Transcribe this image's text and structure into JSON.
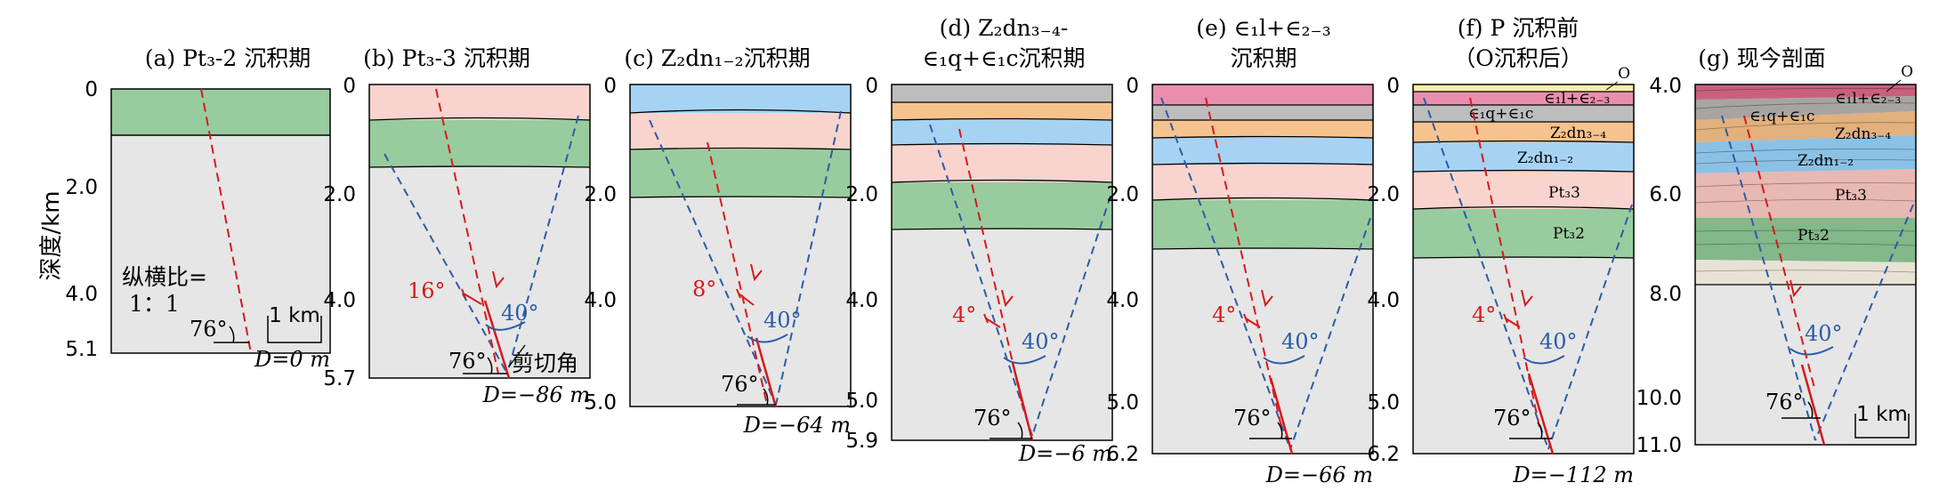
{
  "y_axis_label": "深度/km",
  "aspect_note": [
    "纵横比=",
    "1：1"
  ],
  "scale_label": "1 km",
  "shear_angle_label": "剪切角",
  "colors": {
    "grey": "#e6e6e6",
    "green": "#98cc9e",
    "pink": "#f9d4cf",
    "blue": "#a6d3f4",
    "orange": "#f6c38e",
    "magenta": "#e98eb0",
    "darkgrey": "#bdbdbd",
    "yellow": "#f6f1a5",
    "red": "#d7191c",
    "blueline": "#2b5ca8"
  },
  "panels": [
    {
      "id": "a",
      "title": [
        "(a) Pt₃-2 沉积期"
      ],
      "ticks": [
        "0",
        "2.0",
        "4.0",
        "5.1"
      ],
      "d_label": "D=0 m",
      "fault_dip": "76°",
      "cone_angle": "",
      "fault_offset_angle": ""
    },
    {
      "id": "b",
      "title": [
        "(b) Pt₃-3 沉积期"
      ],
      "ticks": [
        "0",
        "2.0",
        "4.0",
        "5.7"
      ],
      "d_label": "D=−86 m",
      "fault_dip": "76°",
      "cone_angle": "40°",
      "fault_offset_angle": "16°"
    },
    {
      "id": "c",
      "title": [
        "(c) Z₂dn₁₋₂沉积期"
      ],
      "ticks": [
        "0",
        "2.0",
        "4.0",
        "5.0"
      ],
      "d_label": "D=−64 m",
      "fault_dip": "76°",
      "cone_angle": "40°",
      "fault_offset_angle": "8°"
    },
    {
      "id": "d",
      "title": [
        "(d) Z₂dn₃₋₄-",
        "∈₁q+∈₁c沉积期"
      ],
      "ticks": [
        "0",
        "2.0",
        "4.0",
        "5.0",
        "5.9"
      ],
      "d_label": "D=−6 m",
      "fault_dip": "76°",
      "cone_angle": "40°",
      "fault_offset_angle": "4°"
    },
    {
      "id": "e",
      "title": [
        "(e) ∈₁l+∈₂₋₃",
        "沉积期"
      ],
      "ticks": [
        "0",
        "2.0",
        "4.0",
        "5.0",
        "6.2"
      ],
      "d_label": "D=−66 m",
      "fault_dip": "76°",
      "cone_angle": "40°",
      "fault_offset_angle": "4°"
    },
    {
      "id": "f",
      "title": [
        "(f) P 沉积前",
        "（O沉积后）"
      ],
      "ticks": [
        "0",
        "2.0",
        "4.0",
        "5.0",
        "6.2"
      ],
      "d_label": "D=−112 m",
      "fault_dip": "76°",
      "cone_angle": "40°",
      "fault_offset_angle": "4°",
      "layers": [
        "O",
        "∈₁l+∈₂₋₃",
        "∈₁q+∈₁c",
        "Z₂dn₃₋₄",
        "Z₂dn₁₋₂",
        "Pt₃3",
        "Pt₃2"
      ]
    },
    {
      "id": "g",
      "title": [
        "(g) 现今剖面"
      ],
      "ticks": [
        "4.0",
        "6.0",
        "8.0",
        "10.0",
        "11.0"
      ],
      "d_label": "",
      "fault_dip": "76°",
      "cone_angle": "40°",
      "fault_offset_angle": "",
      "layers": [
        "O",
        "∈₁l+∈₂₋₃",
        "∈₁q+∈₁c",
        "Z₂dn₃₋₄",
        "Z₂dn₁₋₂",
        "Pt₃3",
        "Pt₃2"
      ]
    }
  ]
}
